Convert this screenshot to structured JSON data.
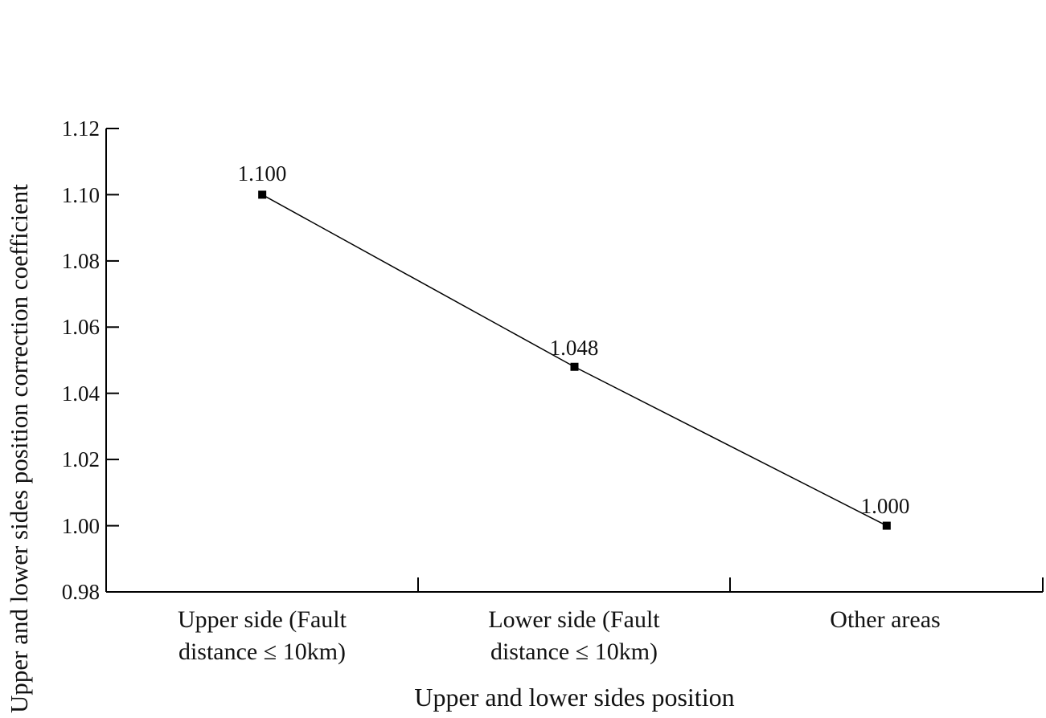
{
  "chart_data": {
    "type": "line",
    "title": "",
    "xlabel": "Upper and lower sides position",
    "ylabel": "Upper and lower sides position correction coefficient",
    "categories": [
      "Upper side (Fault distance ≤ 10km)",
      "Lower side (Fault distance ≤ 10km)",
      "Other areas"
    ],
    "series": [
      {
        "name": "Correction coefficient",
        "values": [
          1.1,
          1.048,
          1.0
        ],
        "marker": "square",
        "color": "#000000"
      }
    ],
    "data_labels": [
      "1.100",
      "1.048",
      "1.000"
    ],
    "ylim": [
      0.98,
      1.12
    ],
    "yticks": [
      "0.98",
      "1.00",
      "1.02",
      "1.04",
      "1.06",
      "1.08",
      "1.10",
      "1.12"
    ],
    "grid": false,
    "legend": null
  },
  "categories_lines": [
    [
      "Upper side (Fault",
      "distance ≤ 10km)"
    ],
    [
      "Lower side (Fault",
      "distance ≤ 10km)"
    ],
    [
      "Other areas",
      ""
    ]
  ]
}
